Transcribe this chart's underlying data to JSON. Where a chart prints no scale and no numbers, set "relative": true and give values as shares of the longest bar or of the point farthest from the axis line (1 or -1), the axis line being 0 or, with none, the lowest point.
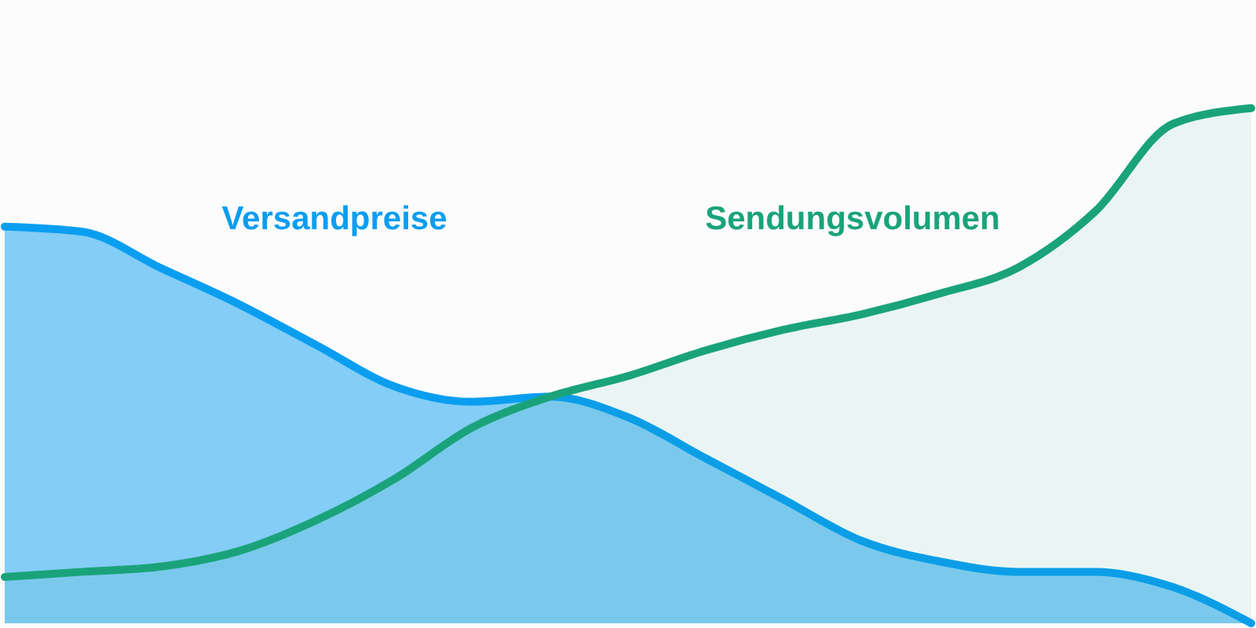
{
  "chart_data": {
    "type": "area",
    "relative": true,
    "categories": [
      null,
      null,
      null,
      null,
      null,
      null,
      null,
      null,
      null,
      null,
      null,
      null,
      null,
      null,
      null,
      null,
      null
    ],
    "series": [
      {
        "name": "Versandpreise",
        "color": "#0a9ef0",
        "values": [
          0.77,
          0.76,
          0.69,
          0.62,
          0.54,
          0.46,
          0.43,
          0.44,
          0.4,
          0.32,
          0.24,
          0.16,
          0.12,
          0.1,
          0.1,
          0.07,
          0
        ]
      },
      {
        "name": "Sendungsvolumen",
        "color": "#1aa37a",
        "values": [
          0.09,
          0.1,
          0.11,
          0.14,
          0.2,
          0.28,
          0.38,
          0.44,
          0.48,
          0.53,
          0.57,
          0.6,
          0.64,
          0.69,
          0.8,
          0.97,
          1.0
        ]
      }
    ]
  }
}
